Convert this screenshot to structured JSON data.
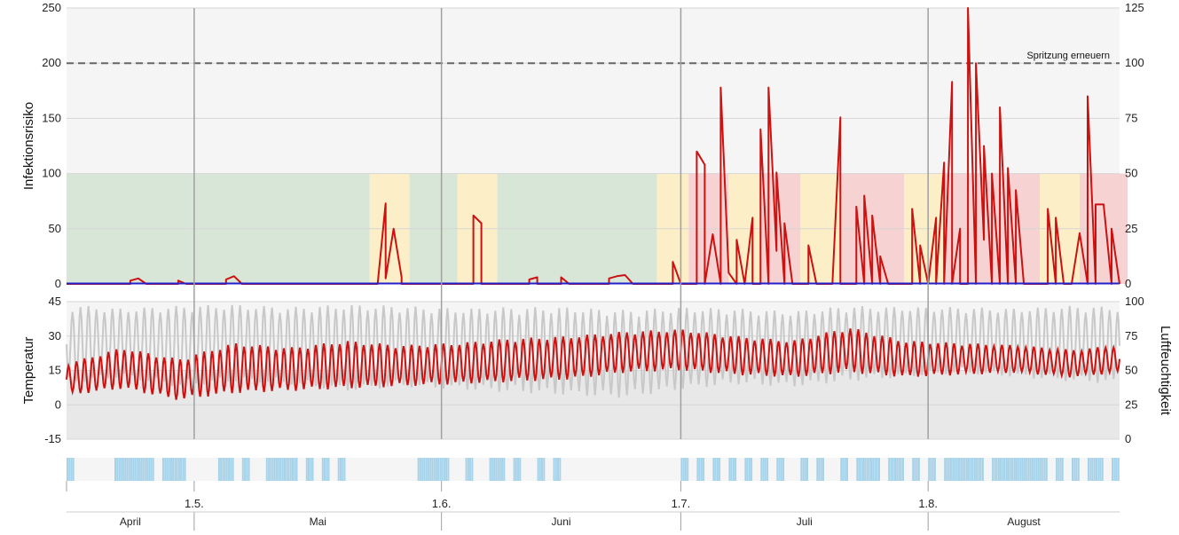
{
  "chart_data": [
    {
      "type": "line",
      "panel": "infection-risk",
      "ylabel": "Infektionsrisiko",
      "ylim": [
        0,
        250
      ],
      "yticks": [
        "0",
        "50",
        "100",
        "150",
        "200",
        "250"
      ],
      "y2lim": [
        0,
        125
      ],
      "y2ticks": [
        "0",
        "25",
        "50",
        "75",
        "100",
        "125"
      ],
      "threshold": {
        "value": 200,
        "label": "Spritzung erneuern"
      },
      "risk_bands": [
        {
          "start": "2023-04-15",
          "end": "2023-04-30",
          "level": "low"
        },
        {
          "start": "2023-04-30",
          "end": "2023-05-23",
          "level": "low"
        },
        {
          "start": "2023-05-23",
          "end": "2023-05-28",
          "level": "medium"
        },
        {
          "start": "2023-05-28",
          "end": "2023-06-03",
          "level": "low"
        },
        {
          "start": "2023-06-03",
          "end": "2023-06-08",
          "level": "medium"
        },
        {
          "start": "2023-06-08",
          "end": "2023-06-28",
          "level": "low"
        },
        {
          "start": "2023-06-28",
          "end": "2023-07-02",
          "level": "medium"
        },
        {
          "start": "2023-07-02",
          "end": "2023-07-07",
          "level": "high"
        },
        {
          "start": "2023-07-07",
          "end": "2023-07-11",
          "level": "medium"
        },
        {
          "start": "2023-07-11",
          "end": "2023-07-16",
          "level": "high"
        },
        {
          "start": "2023-07-16",
          "end": "2023-07-21",
          "level": "medium"
        },
        {
          "start": "2023-07-21",
          "end": "2023-07-29",
          "level": "high"
        },
        {
          "start": "2023-07-29",
          "end": "2023-08-03",
          "level": "medium"
        },
        {
          "start": "2023-08-03",
          "end": "2023-08-15",
          "level": "high"
        },
        {
          "start": "2023-08-15",
          "end": "2023-08-20",
          "level": "medium"
        },
        {
          "start": "2023-08-20",
          "end": "2023-08-26",
          "level": "high"
        }
      ],
      "series": [
        {
          "name": "",
          "color": "#cc1111",
          "points": [
            [
              "2023-04-15",
              0
            ],
            [
              "2023-04-23",
              0
            ],
            [
              "2023-04-23",
              3
            ],
            [
              "2023-04-24",
              5
            ],
            [
              "2023-04-25",
              0
            ],
            [
              "2023-04-29",
              0
            ],
            [
              "2023-04-29",
              3
            ],
            [
              "2023-04-30",
              0
            ],
            [
              "2023-05-05",
              0
            ],
            [
              "2023-05-05",
              4
            ],
            [
              "2023-05-06",
              7
            ],
            [
              "2023-05-07",
              0
            ],
            [
              "2023-05-24",
              0
            ],
            [
              "2023-05-25",
              73
            ],
            [
              "2023-05-25",
              5
            ],
            [
              "2023-05-26",
              50
            ],
            [
              "2023-05-27",
              6
            ],
            [
              "2023-05-27",
              0
            ],
            [
              "2023-06-05",
              0
            ],
            [
              "2023-06-05",
              62
            ],
            [
              "2023-06-06",
              55
            ],
            [
              "2023-06-06",
              0
            ],
            [
              "2023-06-12",
              0
            ],
            [
              "2023-06-12",
              4
            ],
            [
              "2023-06-13",
              6
            ],
            [
              "2023-06-13",
              0
            ],
            [
              "2023-06-16",
              0
            ],
            [
              "2023-06-16",
              6
            ],
            [
              "2023-06-17",
              0
            ],
            [
              "2023-06-22",
              0
            ],
            [
              "2023-06-22",
              5
            ],
            [
              "2023-06-23",
              7
            ],
            [
              "2023-06-24",
              8
            ],
            [
              "2023-06-25",
              0
            ],
            [
              "2023-06-30",
              0
            ],
            [
              "2023-06-30",
              20
            ],
            [
              "2023-07-01",
              0
            ],
            [
              "2023-07-03",
              0
            ],
            [
              "2023-07-03",
              120
            ],
            [
              "2023-07-04",
              108
            ],
            [
              "2023-07-04",
              0
            ],
            [
              "2023-07-05",
              45
            ],
            [
              "2023-07-06",
              0
            ],
            [
              "2023-07-06",
              178
            ],
            [
              "2023-07-07",
              10
            ],
            [
              "2023-07-08",
              0
            ],
            [
              "2023-07-08",
              40
            ],
            [
              "2023-07-09",
              0
            ],
            [
              "2023-07-10",
              60
            ],
            [
              "2023-07-10",
              0
            ],
            [
              "2023-07-11",
              0
            ],
            [
              "2023-07-11",
              140
            ],
            [
              "2023-07-12",
              0
            ],
            [
              "2023-07-12",
              178
            ],
            [
              "2023-07-13",
              30
            ],
            [
              "2023-07-13",
              101
            ],
            [
              "2023-07-14",
              0
            ],
            [
              "2023-07-14",
              55
            ],
            [
              "2023-07-15",
              0
            ],
            [
              "2023-07-17",
              0
            ],
            [
              "2023-07-17",
              35
            ],
            [
              "2023-07-18",
              0
            ],
            [
              "2023-07-20",
              0
            ],
            [
              "2023-07-21",
              151
            ],
            [
              "2023-07-21",
              0
            ],
            [
              "2023-07-23",
              0
            ],
            [
              "2023-07-23",
              70
            ],
            [
              "2023-07-24",
              0
            ],
            [
              "2023-07-24",
              80
            ],
            [
              "2023-07-25",
              0
            ],
            [
              "2023-07-25",
              62
            ],
            [
              "2023-07-26",
              0
            ],
            [
              "2023-07-26",
              25
            ],
            [
              "2023-07-27",
              0
            ],
            [
              "2023-07-30",
              0
            ],
            [
              "2023-07-30",
              68
            ],
            [
              "2023-07-31",
              0
            ],
            [
              "2023-07-31",
              35
            ],
            [
              "2023-08-01",
              0
            ],
            [
              "2023-08-02",
              60
            ],
            [
              "2023-08-02",
              0
            ],
            [
              "2023-08-03",
              110
            ],
            [
              "2023-08-03",
              0
            ],
            [
              "2023-08-04",
              183
            ],
            [
              "2023-08-04",
              0
            ],
            [
              "2023-08-05",
              50
            ],
            [
              "2023-08-05",
              0
            ],
            [
              "2023-08-06",
              0
            ],
            [
              "2023-08-06",
              250
            ],
            [
              "2023-08-07",
              0
            ],
            [
              "2023-08-07",
              200
            ],
            [
              "2023-08-08",
              40
            ],
            [
              "2023-08-08",
              125
            ],
            [
              "2023-08-09",
              0
            ],
            [
              "2023-08-09",
              100
            ],
            [
              "2023-08-10",
              0
            ],
            [
              "2023-08-10",
              160
            ],
            [
              "2023-08-11",
              0
            ],
            [
              "2023-08-11",
              105
            ],
            [
              "2023-08-12",
              0
            ],
            [
              "2023-08-12",
              85
            ],
            [
              "2023-08-13",
              0
            ],
            [
              "2023-08-16",
              0
            ],
            [
              "2023-08-16",
              68
            ],
            [
              "2023-08-17",
              0
            ],
            [
              "2023-08-17",
              60
            ],
            [
              "2023-08-18",
              0
            ],
            [
              "2023-08-19",
              0
            ],
            [
              "2023-08-20",
              46
            ],
            [
              "2023-08-21",
              0
            ],
            [
              "2023-08-21",
              170
            ],
            [
              "2023-08-22",
              0
            ],
            [
              "2023-08-22",
              72
            ],
            [
              "2023-08-23",
              72
            ],
            [
              "2023-08-24",
              0
            ],
            [
              "2023-08-24",
              50
            ],
            [
              "2023-08-25",
              0
            ]
          ]
        },
        {
          "name": "",
          "color": "#2222cc",
          "points": [
            [
              "2023-04-15",
              0
            ],
            [
              "2023-08-25",
              0
            ]
          ]
        }
      ]
    },
    {
      "type": "line",
      "panel": "weather",
      "ylabel": "Temperatur",
      "ylim": [
        -15,
        45
      ],
      "yticks": [
        "-15",
        "0",
        "15",
        "30",
        "45"
      ],
      "y2label": "Luftfeuchtigkeit",
      "y2lim": [
        0,
        100
      ],
      "y2ticks": [
        "0",
        "25",
        "50",
        "75",
        "100"
      ],
      "series": [
        {
          "name": "",
          "axis": "right",
          "color": "#c8c8c8",
          "daily_range": [
            [
              "2023-04-15",
              40,
              98
            ],
            [
              "2023-04-22",
              45,
              95
            ],
            [
              "2023-04-29",
              38,
              97
            ],
            [
              "2023-05-06",
              42,
              98
            ],
            [
              "2023-05-13",
              40,
              96
            ],
            [
              "2023-05-20",
              35,
              98
            ],
            [
              "2023-05-27",
              38,
              97
            ],
            [
              "2023-06-03",
              36,
              95
            ],
            [
              "2023-06-10",
              34,
              96
            ],
            [
              "2023-06-17",
              32,
              96
            ],
            [
              "2023-06-24",
              30,
              94
            ],
            [
              "2023-07-01",
              36,
              96
            ],
            [
              "2023-07-08",
              40,
              95
            ],
            [
              "2023-07-15",
              38,
              93
            ],
            [
              "2023-07-22",
              42,
              97
            ],
            [
              "2023-07-29",
              45,
              96
            ],
            [
              "2023-08-05",
              48,
              96
            ],
            [
              "2023-08-12",
              45,
              95
            ],
            [
              "2023-08-19",
              42,
              97
            ],
            [
              "2023-08-25",
              40,
              96
            ]
          ]
        },
        {
          "name": "",
          "axis": "left",
          "color": "#cc1111",
          "daily_range": [
            [
              "2023-04-15",
              4,
              18
            ],
            [
              "2023-04-22",
              7,
              25
            ],
            [
              "2023-04-29",
              2,
              20
            ],
            [
              "2023-05-06",
              5,
              27
            ],
            [
              "2023-05-13",
              6,
              25
            ],
            [
              "2023-05-20",
              7,
              28
            ],
            [
              "2023-05-27",
              8,
              26
            ],
            [
              "2023-06-03",
              9,
              27
            ],
            [
              "2023-06-10",
              10,
              29
            ],
            [
              "2023-06-17",
              11,
              30
            ],
            [
              "2023-06-24",
              14,
              32
            ],
            [
              "2023-07-01",
              15,
              33
            ],
            [
              "2023-07-08",
              13,
              30
            ],
            [
              "2023-07-15",
              12,
              28
            ],
            [
              "2023-07-22",
              14,
              34
            ],
            [
              "2023-07-29",
              12,
              28
            ],
            [
              "2023-08-05",
              13,
              27
            ],
            [
              "2023-08-12",
              14,
              26
            ],
            [
              "2023-08-19",
              12,
              24
            ],
            [
              "2023-08-25",
              14,
              26
            ]
          ]
        }
      ]
    },
    {
      "type": "bar",
      "panel": "leaf-wetness",
      "color": "#a6d3ea",
      "wet_periods": [
        [
          "2023-04-15",
          "2023-04-16"
        ],
        [
          "2023-04-21",
          "2023-04-26"
        ],
        [
          "2023-04-27",
          "2023-04-30"
        ],
        [
          "2023-05-04",
          "2023-05-06"
        ],
        [
          "2023-05-07",
          "2023-05-08"
        ],
        [
          "2023-05-10",
          "2023-05-14"
        ],
        [
          "2023-05-15",
          "2023-05-16"
        ],
        [
          "2023-05-17",
          "2023-05-18"
        ],
        [
          "2023-05-19",
          "2023-05-20"
        ],
        [
          "2023-05-29",
          "2023-06-02"
        ],
        [
          "2023-06-04",
          "2023-06-05"
        ],
        [
          "2023-06-07",
          "2023-06-09"
        ],
        [
          "2023-06-10",
          "2023-06-11"
        ],
        [
          "2023-06-13",
          "2023-06-14"
        ],
        [
          "2023-06-15",
          "2023-06-16"
        ],
        [
          "2023-07-01",
          "2023-07-02"
        ],
        [
          "2023-07-03",
          "2023-07-04"
        ],
        [
          "2023-07-05",
          "2023-07-06"
        ],
        [
          "2023-07-07",
          "2023-07-08"
        ],
        [
          "2023-07-09",
          "2023-07-10"
        ],
        [
          "2023-07-11",
          "2023-07-12"
        ],
        [
          "2023-07-13",
          "2023-07-14"
        ],
        [
          "2023-07-16",
          "2023-07-17"
        ],
        [
          "2023-07-18",
          "2023-07-19"
        ],
        [
          "2023-07-21",
          "2023-07-22"
        ],
        [
          "2023-07-23",
          "2023-07-26"
        ],
        [
          "2023-07-27",
          "2023-07-29"
        ],
        [
          "2023-07-30",
          "2023-07-31"
        ],
        [
          "2023-08-01",
          "2023-08-02"
        ],
        [
          "2023-08-03",
          "2023-08-08"
        ],
        [
          "2023-08-09",
          "2023-08-16"
        ],
        [
          "2023-08-17",
          "2023-08-18"
        ],
        [
          "2023-08-19",
          "2023-08-20"
        ],
        [
          "2023-08-21",
          "2023-08-23"
        ],
        [
          "2023-08-24",
          "2023-08-25"
        ]
      ]
    }
  ],
  "x_axis": {
    "start": "2023-04-15",
    "end": "2023-08-25",
    "ticks": [
      {
        "date": "2023-05-01",
        "label": "1.5."
      },
      {
        "date": "2023-06-01",
        "label": "1.6."
      },
      {
        "date": "2023-07-01",
        "label": "1.7."
      },
      {
        "date": "2023-08-01",
        "label": "1.8."
      }
    ],
    "months": [
      {
        "label": "April",
        "start": "2023-04-15",
        "end": "2023-05-01"
      },
      {
        "label": "Mai",
        "start": "2023-05-01",
        "end": "2023-06-01"
      },
      {
        "label": "Juni",
        "start": "2023-06-01",
        "end": "2023-07-01"
      },
      {
        "label": "Juli",
        "start": "2023-07-01",
        "end": "2023-08-01"
      },
      {
        "label": "August",
        "start": "2023-08-01",
        "end": "2023-08-25"
      }
    ]
  },
  "colors": {
    "band_low": "#d8e6d8",
    "band_medium": "#fcefc7",
    "band_high": "#f6d2d2",
    "panel_bg": "#f5f5f5",
    "weather_bg": "#e8e8e8",
    "risk_line": "#cc1111",
    "low_risk_line": "#ff8800",
    "baseline": "#2222cc",
    "humidity": "#c8c8c8",
    "temperature": "#cc1111",
    "wetness": "#a6d3ea",
    "grid": "#d6d6d6",
    "vline": "#a0a0a0"
  }
}
